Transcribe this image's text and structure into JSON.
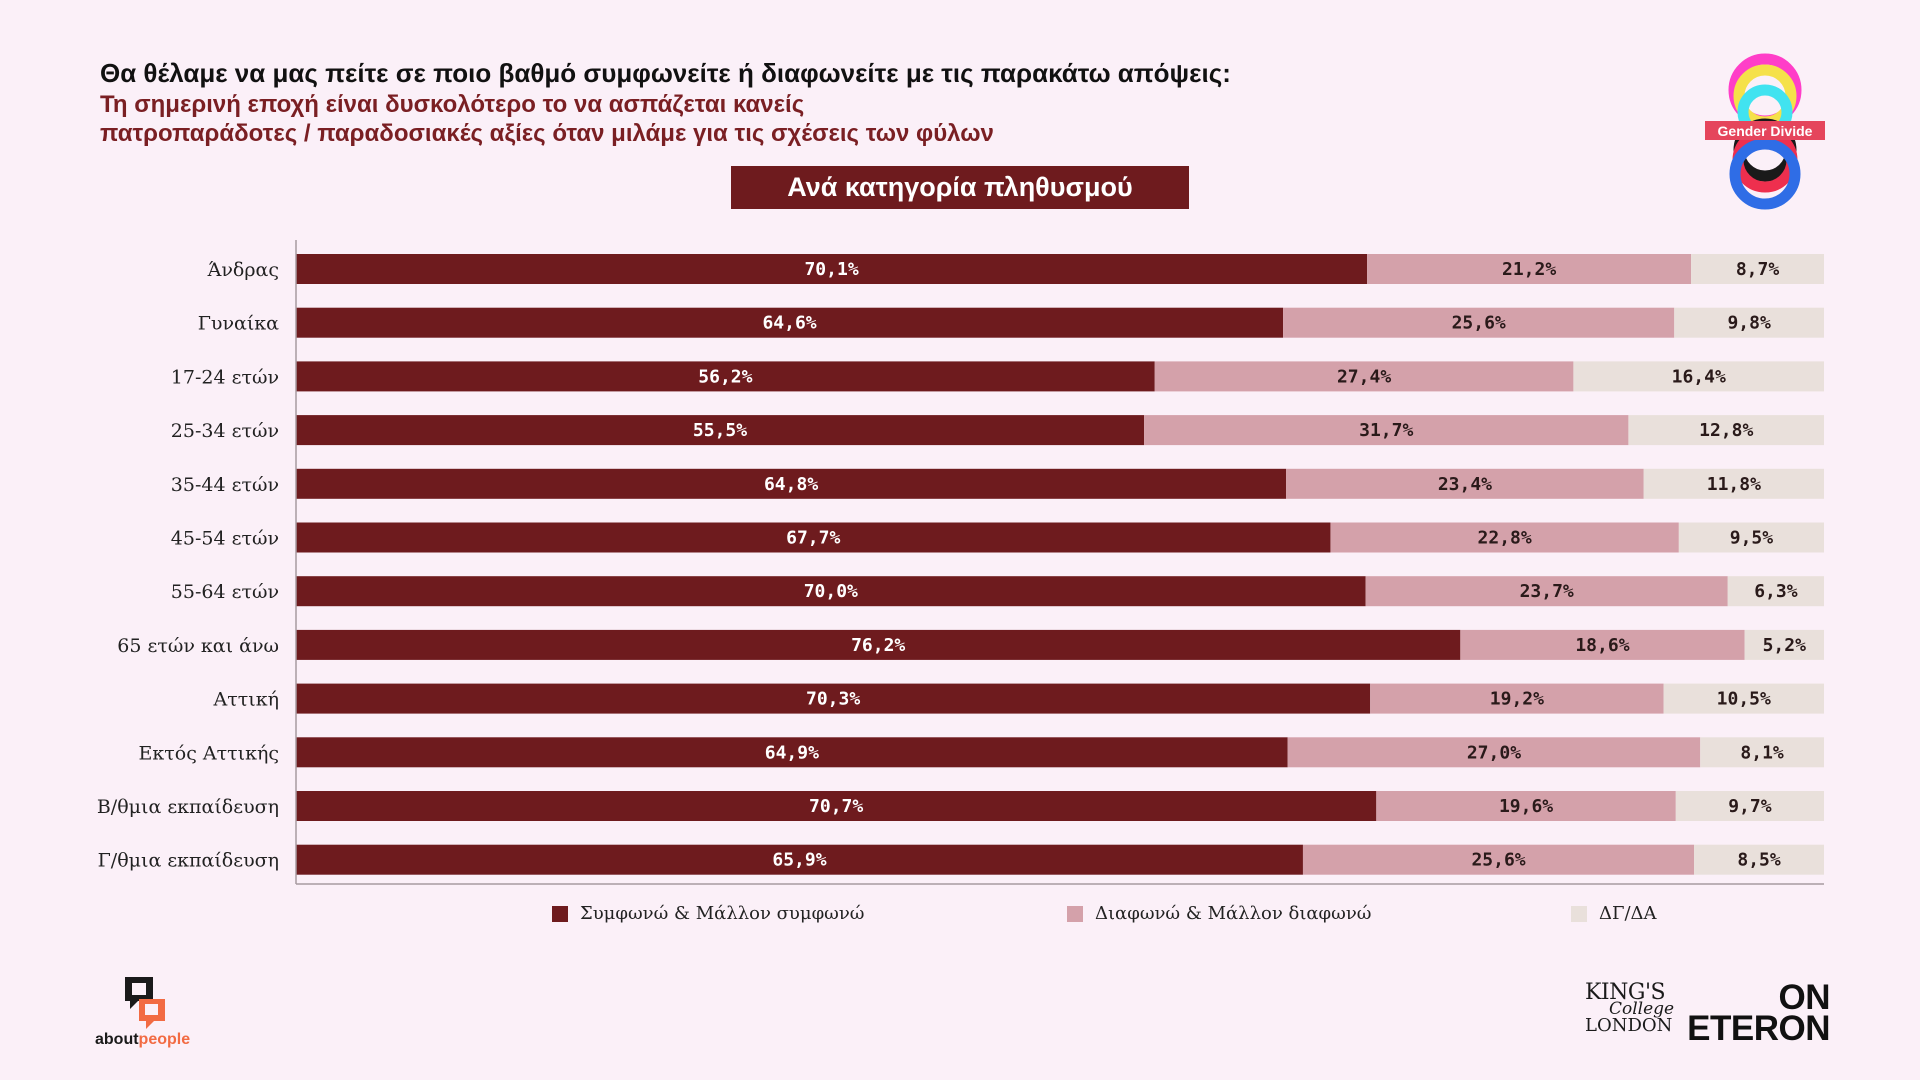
{
  "header": {
    "question": "Θα θέλαμε να μας πείτε σε ποιο βαθμό συμφωνείτε ή διαφωνείτε με τις παρακάτω απόψεις:",
    "statement_line1": "Τη σημερινή εποχή είναι δυσκολότερο το  να ασπάζεται κανείς",
    "statement_line2": "πατροπαράδοτες / παραδοσιακές αξίες όταν μιλάμε για τις σχέσεις των φύλων",
    "category_banner": "Ανά κατηγορία πληθυσμού"
  },
  "logos": {
    "gender_divide": "Gender Divide",
    "aboutpeople_prefix": "about",
    "aboutpeople_suffix": "people",
    "kcl_line1": "KING'S",
    "kcl_line2": "College",
    "kcl_line3": "LONDON",
    "oneteron_line1": "ON",
    "oneteron_line2": "ETERON"
  },
  "colors": {
    "agree": "#6e1b1e",
    "disagree": "#d4a1aa",
    "dk": "#e9e0db",
    "background": "#fbf0f8",
    "banner": "#6e1b1e"
  },
  "chart_data": {
    "type": "bar",
    "orientation": "horizontal",
    "stacked": true,
    "title": "Ανά κατηγορία πληθυσμού",
    "categories": [
      "Άνδρας",
      "Γυναίκα",
      "17-24 ετών",
      "25-34 ετών",
      "35-44 ετών",
      "45-54 ετών",
      "55-64 ετών",
      "65 ετών και άνω",
      "Αττική",
      "Εκτός Αττικής",
      "Β/θμια εκπαίδευση",
      "Γ/θμια εκπαίδευση"
    ],
    "series": [
      {
        "name": "Συμφωνώ & Μάλλον συμφωνώ",
        "color": "#6e1b1e",
        "values": [
          70.1,
          64.6,
          56.2,
          55.5,
          64.8,
          67.7,
          70.0,
          76.2,
          70.3,
          64.9,
          70.7,
          65.9
        ],
        "labels": [
          "70,1%",
          "64,6%",
          "56,2%",
          "55,5%",
          "64,8%",
          "67,7%",
          "70,0%",
          "76,2%",
          "70,3%",
          "64,9%",
          "70,7%",
          "65,9%"
        ]
      },
      {
        "name": "Διαφωνώ & Μάλλον διαφωνώ",
        "color": "#d4a1aa",
        "values": [
          21.2,
          25.6,
          27.4,
          31.7,
          23.4,
          22.8,
          23.7,
          18.6,
          19.2,
          27.0,
          19.6,
          25.6
        ],
        "labels": [
          "21,2%",
          "25,6%",
          "27,4%",
          "31,7%",
          "23,4%",
          "22,8%",
          "23,7%",
          "18,6%",
          "19,2%",
          "27,0%",
          "19,6%",
          "25,6%"
        ]
      },
      {
        "name": "ΔΓ/ΔΑ",
        "color": "#e9e0db",
        "values": [
          8.7,
          9.8,
          16.4,
          12.8,
          11.8,
          9.5,
          6.3,
          5.2,
          10.5,
          8.1,
          9.7,
          8.5
        ],
        "labels": [
          "8,7%",
          "9,8%",
          "16,4%",
          "12,8%",
          "11,8%",
          "9,5%",
          "6,3%",
          "5,2%",
          "10,5%",
          "8,1%",
          "9,7%",
          "8,5%"
        ]
      }
    ],
    "xlim": [
      0,
      100
    ],
    "legend_position": "bottom",
    "grid": false
  }
}
